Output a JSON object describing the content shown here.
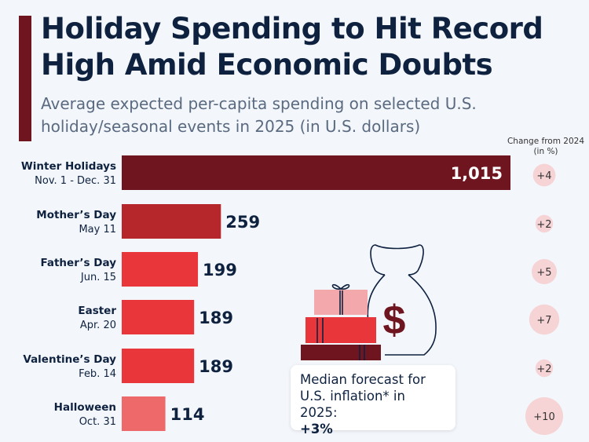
{
  "header": {
    "title": "Holiday Spending to Hit Record High Amid Economic Doubts",
    "subtitle": "Average expected per-capita spending on selected U.S. holiday/seasonal events in 2025 (in U.S. dollars)",
    "change_header": "Change from 2024 (in %)"
  },
  "chart_data": {
    "type": "bar",
    "orientation": "horizontal",
    "title": "Holiday Spending to Hit Record High Amid Economic Doubts",
    "categories": [
      "Winter Holidays",
      "Mother’s Day",
      "Father’s Day",
      "Easter",
      "Valentine’s Day",
      "Halloween"
    ],
    "dates": [
      "Nov. 1 - Dec. 31",
      "May 11",
      "Jun. 15",
      "Apr. 20",
      "Feb. 14",
      "Oct. 31"
    ],
    "values": [
      1015,
      259,
      199,
      189,
      189,
      114
    ],
    "value_labels": [
      "1,015",
      "259",
      "199",
      "189",
      "189",
      "114"
    ],
    "change_pct": [
      4,
      2,
      5,
      7,
      2,
      10
    ],
    "change_labels": [
      "+4",
      "+2",
      "+5",
      "+7",
      "+2",
      "+10"
    ],
    "colors": [
      "#6e1520",
      "#b5272a",
      "#e8363a",
      "#e8363a",
      "#e8363a",
      "#ee6a6a"
    ],
    "xlim": [
      0,
      1015
    ]
  },
  "callout": {
    "line1": "Median forecast for",
    "line2": "U.S. inflation* in 2025:",
    "value": "+3%"
  }
}
